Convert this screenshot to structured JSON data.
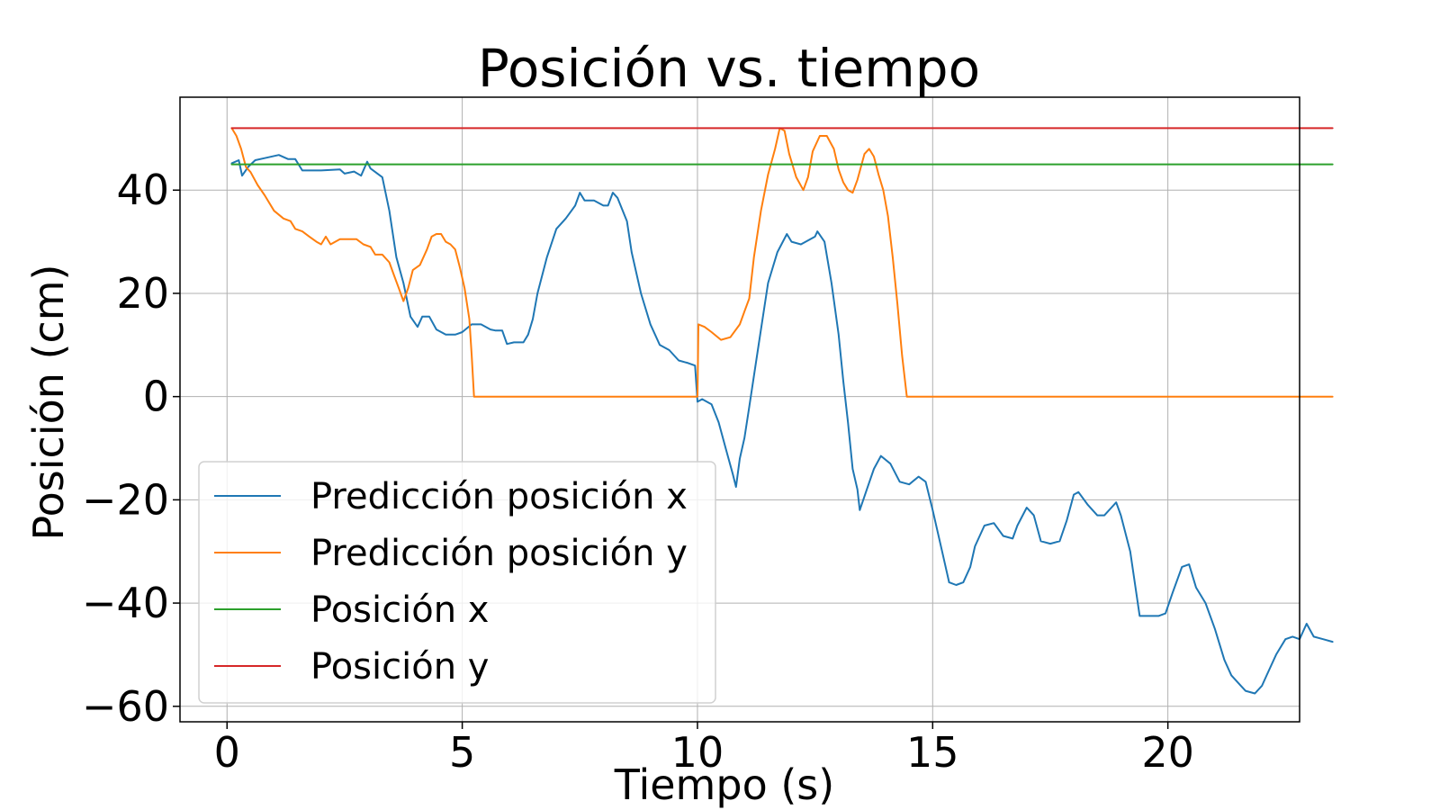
{
  "chart_data": {
    "type": "line",
    "title": "Posición vs. tiempo",
    "xlabel": "Tiempo (s)",
    "ylabel": "Posición (cm)",
    "xlim": [
      -1,
      22.8
    ],
    "ylim": [
      -63,
      58
    ],
    "xticks": [
      0,
      5,
      10,
      15,
      20
    ],
    "xtick_labels": [
      "0",
      "5",
      "10",
      "15",
      "20"
    ],
    "yticks": [
      -60,
      -40,
      -20,
      0,
      20,
      40
    ],
    "ytick_labels": [
      "−60",
      "−40",
      "−20",
      "0",
      "20",
      "40"
    ],
    "grid": true,
    "legend_position": "lower-left",
    "series": [
      {
        "name": "Predicción posición x",
        "color": "#1f77b4",
        "points": [
          [
            0.1,
            45.2
          ],
          [
            0.25,
            45.8
          ],
          [
            0.32,
            42.8
          ],
          [
            0.45,
            44.5
          ],
          [
            0.6,
            45.8
          ],
          [
            0.8,
            46.2
          ],
          [
            1.1,
            46.8
          ],
          [
            1.3,
            46.0
          ],
          [
            1.45,
            46.0
          ],
          [
            1.6,
            43.8
          ],
          [
            2.0,
            43.8
          ],
          [
            2.4,
            44.0
          ],
          [
            2.5,
            43.2
          ],
          [
            2.7,
            43.6
          ],
          [
            2.85,
            42.8
          ],
          [
            2.98,
            45.5
          ],
          [
            3.05,
            44.2
          ],
          [
            3.3,
            42.5
          ],
          [
            3.45,
            36.0
          ],
          [
            3.6,
            27.0
          ],
          [
            3.75,
            22.0
          ],
          [
            3.9,
            15.5
          ],
          [
            4.05,
            13.5
          ],
          [
            4.15,
            15.5
          ],
          [
            4.3,
            15.5
          ],
          [
            4.45,
            13.0
          ],
          [
            4.65,
            12.0
          ],
          [
            4.85,
            12.0
          ],
          [
            5.0,
            12.5
          ],
          [
            5.2,
            14.0
          ],
          [
            5.4,
            14.0
          ],
          [
            5.6,
            13.0
          ],
          [
            5.7,
            12.8
          ],
          [
            5.85,
            12.8
          ],
          [
            5.95,
            10.2
          ],
          [
            6.1,
            10.5
          ],
          [
            6.3,
            10.5
          ],
          [
            6.4,
            12.0
          ],
          [
            6.5,
            15.0
          ],
          [
            6.6,
            20.0
          ],
          [
            6.8,
            27.0
          ],
          [
            7.0,
            32.5
          ],
          [
            7.2,
            34.5
          ],
          [
            7.4,
            37.0
          ],
          [
            7.5,
            39.5
          ],
          [
            7.6,
            38.0
          ],
          [
            7.8,
            38.0
          ],
          [
            8.0,
            37.0
          ],
          [
            8.1,
            37.0
          ],
          [
            8.2,
            39.5
          ],
          [
            8.3,
            38.5
          ],
          [
            8.5,
            34.0
          ],
          [
            8.6,
            28.0
          ],
          [
            8.8,
            20.0
          ],
          [
            9.0,
            14.0
          ],
          [
            9.2,
            10.0
          ],
          [
            9.4,
            9.0
          ],
          [
            9.6,
            7.0
          ],
          [
            9.8,
            6.5
          ],
          [
            9.95,
            6.0
          ],
          [
            10.0,
            -1.0
          ],
          [
            10.1,
            -0.5
          ],
          [
            10.3,
            -1.5
          ],
          [
            10.45,
            -5.0
          ],
          [
            10.6,
            -10.0
          ],
          [
            10.75,
            -15.0
          ],
          [
            10.82,
            -17.5
          ],
          [
            10.9,
            -12.0
          ],
          [
            11.0,
            -8.0
          ],
          [
            11.1,
            -2.0
          ],
          [
            11.3,
            10.0
          ],
          [
            11.5,
            22.0
          ],
          [
            11.7,
            28.0
          ],
          [
            11.9,
            31.5
          ],
          [
            12.0,
            30.0
          ],
          [
            12.2,
            29.5
          ],
          [
            12.4,
            30.5
          ],
          [
            12.5,
            31.0
          ],
          [
            12.55,
            32.0
          ],
          [
            12.7,
            30.0
          ],
          [
            12.85,
            22.0
          ],
          [
            13.0,
            12.0
          ],
          [
            13.1,
            3.0
          ],
          [
            13.2,
            -5.0
          ],
          [
            13.3,
            -14.0
          ],
          [
            13.4,
            -18.0
          ],
          [
            13.45,
            -22.0
          ],
          [
            13.6,
            -18.0
          ],
          [
            13.75,
            -14.0
          ],
          [
            13.9,
            -11.5
          ],
          [
            14.1,
            -13.0
          ],
          [
            14.3,
            -16.5
          ],
          [
            14.5,
            -17.0
          ],
          [
            14.7,
            -15.5
          ],
          [
            14.85,
            -16.5
          ],
          [
            15.0,
            -22.0
          ],
          [
            15.2,
            -30.0
          ],
          [
            15.35,
            -36.0
          ],
          [
            15.5,
            -36.5
          ],
          [
            15.65,
            -36.0
          ],
          [
            15.8,
            -33.0
          ],
          [
            15.9,
            -29.0
          ],
          [
            16.1,
            -25.0
          ],
          [
            16.3,
            -24.5
          ],
          [
            16.5,
            -27.0
          ],
          [
            16.7,
            -27.5
          ],
          [
            16.8,
            -25.0
          ],
          [
            17.0,
            -21.5
          ],
          [
            17.15,
            -23.0
          ],
          [
            17.3,
            -28.0
          ],
          [
            17.5,
            -28.5
          ],
          [
            17.7,
            -28.0
          ],
          [
            17.85,
            -24.0
          ],
          [
            18.0,
            -19.0
          ],
          [
            18.1,
            -18.5
          ],
          [
            18.3,
            -21.0
          ],
          [
            18.5,
            -23.0
          ],
          [
            18.65,
            -23.0
          ],
          [
            18.8,
            -21.5
          ],
          [
            18.9,
            -20.5
          ],
          [
            19.0,
            -23.0
          ],
          [
            19.2,
            -30.0
          ],
          [
            19.4,
            -42.5
          ],
          [
            19.6,
            -42.5
          ],
          [
            19.8,
            -42.5
          ],
          [
            19.95,
            -42.0
          ],
          [
            20.1,
            -38.0
          ],
          [
            20.3,
            -33.0
          ],
          [
            20.45,
            -32.5
          ],
          [
            20.6,
            -37.0
          ],
          [
            20.8,
            -40.0
          ],
          [
            21.0,
            -45.0
          ],
          [
            21.2,
            -51.0
          ],
          [
            21.35,
            -54.0
          ],
          [
            21.55,
            -56.0
          ],
          [
            21.65,
            -57.0
          ],
          [
            21.85,
            -57.5
          ],
          [
            22.0,
            -56.0
          ],
          [
            22.1,
            -54.0
          ],
          [
            22.3,
            -50.0
          ],
          [
            22.5,
            -47.0
          ],
          [
            22.65,
            -46.5
          ],
          [
            22.8,
            -47.0
          ],
          [
            22.95,
            -44.0
          ],
          [
            23.1,
            -46.5
          ],
          [
            23.3,
            -47.0
          ],
          [
            23.5,
            -47.5
          ]
        ]
      },
      {
        "name": "Predicción posición y",
        "color": "#ff7f0e",
        "points": [
          [
            0.1,
            52.0
          ],
          [
            0.2,
            50.5
          ],
          [
            0.3,
            48.0
          ],
          [
            0.4,
            44.5
          ],
          [
            0.5,
            43.5
          ],
          [
            0.65,
            41.0
          ],
          [
            0.8,
            39.0
          ],
          [
            1.0,
            36.0
          ],
          [
            1.2,
            34.5
          ],
          [
            1.35,
            34.0
          ],
          [
            1.45,
            32.5
          ],
          [
            1.6,
            32.0
          ],
          [
            1.75,
            31.0
          ],
          [
            1.9,
            30.0
          ],
          [
            2.0,
            29.5
          ],
          [
            2.1,
            31.0
          ],
          [
            2.2,
            29.5
          ],
          [
            2.4,
            30.5
          ],
          [
            2.6,
            30.5
          ],
          [
            2.75,
            30.5
          ],
          [
            2.9,
            29.5
          ],
          [
            3.05,
            29.0
          ],
          [
            3.15,
            27.5
          ],
          [
            3.3,
            27.5
          ],
          [
            3.45,
            26.0
          ],
          [
            3.55,
            23.5
          ],
          [
            3.65,
            21.0
          ],
          [
            3.75,
            18.5
          ],
          [
            3.85,
            21.0
          ],
          [
            3.95,
            24.5
          ],
          [
            4.1,
            25.5
          ],
          [
            4.25,
            28.5
          ],
          [
            4.35,
            31.0
          ],
          [
            4.45,
            31.5
          ],
          [
            4.55,
            31.5
          ],
          [
            4.65,
            30.0
          ],
          [
            4.75,
            29.5
          ],
          [
            4.85,
            28.5
          ],
          [
            4.95,
            25.0
          ],
          [
            5.05,
            21.0
          ],
          [
            5.15,
            15.0
          ],
          [
            5.2,
            8.0
          ],
          [
            5.25,
            0.0
          ],
          [
            10.0,
            0.0
          ],
          [
            10.02,
            14.0
          ],
          [
            10.15,
            13.5
          ],
          [
            10.3,
            12.5
          ],
          [
            10.5,
            11.0
          ],
          [
            10.7,
            11.5
          ],
          [
            10.9,
            14.0
          ],
          [
            11.0,
            16.5
          ],
          [
            11.1,
            19.0
          ],
          [
            11.2,
            27.0
          ],
          [
            11.35,
            36.0
          ],
          [
            11.5,
            43.0
          ],
          [
            11.65,
            48.0
          ],
          [
            11.75,
            52.0
          ],
          [
            11.85,
            51.5
          ],
          [
            11.95,
            47.0
          ],
          [
            12.1,
            42.5
          ],
          [
            12.25,
            40.0
          ],
          [
            12.35,
            42.5
          ],
          [
            12.45,
            47.5
          ],
          [
            12.6,
            50.5
          ],
          [
            12.75,
            50.5
          ],
          [
            12.9,
            48.0
          ],
          [
            13.0,
            44.0
          ],
          [
            13.1,
            41.5
          ],
          [
            13.2,
            40.0
          ],
          [
            13.3,
            39.5
          ],
          [
            13.4,
            42.0
          ],
          [
            13.55,
            47.0
          ],
          [
            13.65,
            48.0
          ],
          [
            13.75,
            46.5
          ],
          [
            13.85,
            43.0
          ],
          [
            13.95,
            40.0
          ],
          [
            14.05,
            35.0
          ],
          [
            14.15,
            27.0
          ],
          [
            14.25,
            18.0
          ],
          [
            14.35,
            8.0
          ],
          [
            14.45,
            0.0
          ],
          [
            23.5,
            0.0
          ]
        ]
      },
      {
        "name": "Posición x",
        "color": "#2ca02c",
        "points": [
          [
            0.1,
            45.0
          ],
          [
            23.5,
            45.0
          ]
        ]
      },
      {
        "name": "Posición y",
        "color": "#d62728",
        "points": [
          [
            0.1,
            52.0
          ],
          [
            23.5,
            52.0
          ]
        ]
      }
    ]
  }
}
